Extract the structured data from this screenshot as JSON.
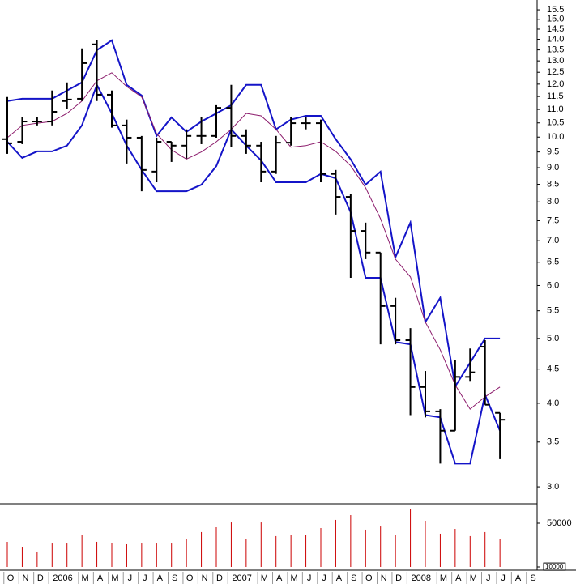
{
  "chart_data": [
    {
      "type": "ohlc",
      "log_scale": true,
      "bar_color": "#000000",
      "open": [
        9.93,
        9.84,
        10.55,
        10.55,
        11.32,
        11.41,
        13.76,
        11.57,
        10.41,
        9.98,
        8.88,
        9.84,
        9.71,
        10.04,
        10.04,
        11.06,
        10.04,
        9.71,
        8.88,
        9.81,
        10.49,
        10.49,
        8.81,
        8.14,
        7.24,
        6.72,
        5.59,
        4.97,
        4.23,
        3.89,
        3.64,
        4.38,
        4.86,
        3.87,
        null,
        null
      ],
      "high": [
        11.48,
        10.7,
        10.7,
        11.74,
        12.07,
        13.57,
        13.95,
        11.74,
        10.62,
        10.04,
        9.98,
        9.84,
        10.27,
        10.7,
        11.16,
        11.97,
        10.27,
        9.84,
        10.04,
        10.7,
        10.7,
        10.62,
        8.93,
        8.21,
        7.45,
        6.72,
        5.75,
        5.18,
        4.47,
        3.92,
        4.64,
        4.83,
        4.97,
        3.87,
        null,
        null
      ],
      "low": [
        9.44,
        9.76,
        10.41,
        10.41,
        11.01,
        11.32,
        11.32,
        10.33,
        9.13,
        8.3,
        8.56,
        9.18,
        9.29,
        9.76,
        9.98,
        9.66,
        9.44,
        8.56,
        8.81,
        9.71,
        10.27,
        8.56,
        7.66,
        6.16,
        6.57,
        4.9,
        4.9,
        3.84,
        3.81,
        3.25,
        3.64,
        4.32,
        3.98,
        3.3,
        null,
        null
      ],
      "close": [
        9.79,
        10.55,
        10.55,
        10.91,
        11.38,
        12.9,
        11.57,
        10.41,
        9.98,
        8.93,
        9.84,
        9.71,
        10.04,
        10.04,
        11.06,
        10.04,
        9.71,
        8.88,
        9.81,
        10.49,
        10.49,
        8.81,
        8.14,
        7.24,
        6.72,
        5.59,
        4.97,
        4.23,
        3.89,
        3.64,
        4.38,
        4.45,
        3.98,
        3.78,
        null,
        null
      ],
      "series": [
        {
          "color": "#1414c8",
          "values": [
            11.32,
            11.41,
            11.41,
            11.41,
            11.74,
            12.07,
            13.49,
            13.95,
            11.97,
            11.54,
            10.04,
            10.7,
            10.18,
            10.55,
            10.85,
            11.16,
            11.97,
            11.97,
            10.27,
            10.62,
            10.76,
            10.76,
            9.93,
            9.26,
            8.49,
            8.88,
            6.61,
            7.45,
            5.29,
            5.75,
            4.24,
            4.6,
            5.0,
            5.0,
            null,
            null
          ]
        },
        {
          "color": "#1414c8",
          "values": [
            9.84,
            9.31,
            9.52,
            9.52,
            9.71,
            10.41,
            11.97,
            10.85,
            9.71,
            8.93,
            8.3,
            8.3,
            8.3,
            8.49,
            9.05,
            10.27,
            9.71,
            9.23,
            8.56,
            8.56,
            8.56,
            8.81,
            8.68,
            7.72,
            6.16,
            6.16,
            4.94,
            4.9,
            3.84,
            3.81,
            3.25,
            3.25,
            4.12,
            3.64,
            null,
            null
          ]
        },
        {
          "color": "#8b1a6b",
          "values": [
            9.98,
            10.41,
            10.49,
            10.55,
            10.85,
            11.32,
            12.14,
            12.48,
            11.9,
            11.48,
            10.12,
            9.57,
            9.27,
            9.5,
            9.84,
            10.27,
            10.85,
            10.76,
            10.27,
            9.66,
            9.71,
            9.84,
            9.52,
            9.06,
            8.4,
            7.55,
            6.57,
            6.18,
            5.29,
            4.81,
            4.26,
            3.92,
            4.09,
            4.23,
            null,
            null
          ]
        }
      ],
      "ylim": [
        2.83,
        16.03
      ],
      "yticks": [
        {
          "value": 3,
          "label": "3.0"
        },
        3.5,
        {
          "value": 4,
          "label": "4.0"
        },
        4.5,
        {
          "value": 5,
          "label": "5.0"
        },
        5.5,
        {
          "value": 6,
          "label": "6.0"
        },
        6.5,
        {
          "value": 7,
          "label": "7.0"
        },
        7.5,
        {
          "value": 8,
          "label": "8.0"
        },
        8.5,
        {
          "value": 9,
          "label": "9.0"
        },
        9.5,
        {
          "value": 10,
          "label": "10.0"
        },
        10.5,
        {
          "value": 11,
          "label": "11.0"
        },
        11.5,
        {
          "value": 12,
          "label": "12.0"
        },
        12.5,
        {
          "value": 13,
          "label": "13.0"
        },
        13.5,
        {
          "value": 14,
          "label": "14.0"
        },
        14.5,
        {
          "value": 15,
          "label": "15.0"
        },
        15.5
      ]
    },
    {
      "type": "bar",
      "color": "#cc0000",
      "categories": [
        "O",
        "N",
        "D",
        "2006",
        null,
        "M",
        "A",
        "M",
        "J",
        "J",
        "A",
        "S",
        "O",
        "N",
        "D",
        "2007",
        null,
        "M",
        "A",
        "M",
        "J",
        "J",
        "A",
        "S",
        "O",
        "N",
        "D",
        "2008",
        null,
        "M",
        "A",
        "M",
        "J",
        "J",
        "A",
        "S"
      ],
      "values": [
        33000,
        28500,
        24100,
        32200,
        32200,
        38900,
        33000,
        32200,
        31500,
        32200,
        32200,
        32200,
        35900,
        41900,
        46300,
        50700,
        35900,
        50700,
        38200,
        38900,
        39600,
        45600,
        53000,
        57400,
        44100,
        47000,
        38900,
        62600,
        52200,
        40400,
        44800,
        38200,
        41900,
        35200,
        null,
        null
      ],
      "ylim": [
        10000,
        66300
      ],
      "yticks": [
        50000,
        10000
      ]
    }
  ]
}
